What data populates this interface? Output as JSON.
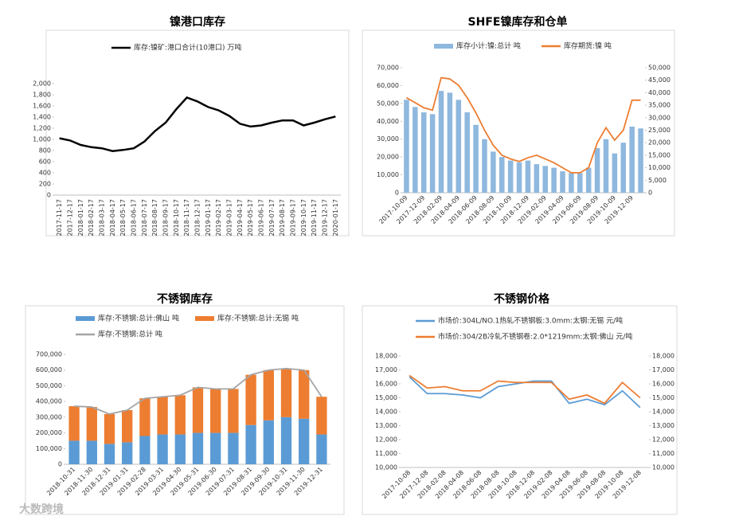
{
  "chart_data": [
    {
      "type": "line",
      "title": "镍港口库存",
      "categories": [
        "2017-11-17",
        "2017-12-17",
        "2018-01-17",
        "2018-02-17",
        "2018-03-17",
        "2018-04-17",
        "2018-05-17",
        "2018-06-17",
        "2018-07-17",
        "2018-08-17",
        "2018-09-17",
        "2018-10-17",
        "2018-11-17",
        "2018-12-17",
        "2019-01-17",
        "2019-02-17",
        "2019-03-17",
        "2019-04-17",
        "2019-05-17",
        "2019-06-17",
        "2019-07-17",
        "2019-08-17",
        "2019-09-17",
        "2019-10-17",
        "2019-11-17",
        "2019-12-17",
        "2020-01-17"
      ],
      "series": [
        {
          "name": "库存:镍矿:港口合计(10港口) 万吨",
          "color": "#000000",
          "type": "line",
          "values": [
            1020,
            980,
            900,
            860,
            840,
            790,
            810,
            840,
            960,
            1150,
            1300,
            1540,
            1750,
            1680,
            1580,
            1520,
            1420,
            1280,
            1230,
            1250,
            1300,
            1340,
            1340,
            1250,
            1300,
            1360,
            1410
          ]
        }
      ],
      "ylim": [
        0,
        2000
      ],
      "yticks": [
        0,
        200,
        400,
        600,
        800,
        {
          "value": 1000,
          "label": "1,000"
        },
        {
          "value": 1200,
          "label": "1,200"
        },
        {
          "value": 1400,
          "label": "1,400"
        },
        {
          "value": 1600,
          "label": "1,600"
        },
        {
          "value": 1800,
          "label": "1,800"
        },
        {
          "value": 2000,
          "label": "2,000"
        }
      ]
    },
    {
      "type": "bar_line",
      "title": "SHFE镍库存和仓单",
      "categories": [
        "2017-10-09",
        null,
        "2017-12-09",
        null,
        "2018-02-09",
        null,
        "2018-04-09",
        null,
        "2018-06-09",
        null,
        "2018-08-09",
        null,
        "2018-10-09",
        null,
        "2018-12-09",
        null,
        "2019-02-09",
        null,
        "2019-04-09",
        null,
        "2019-06-09",
        null,
        "2019-08-09",
        null,
        "2019-10-09",
        null,
        "2019-12-09",
        null
      ],
      "series": [
        {
          "name": "库存小计:镍:总计 吨",
          "color": "#8fb8de",
          "type": "bar",
          "values": [
            52000,
            48000,
            45000,
            44000,
            57000,
            56000,
            52000,
            45000,
            38000,
            30000,
            23000,
            20000,
            18000,
            17000,
            18000,
            16000,
            15000,
            14000,
            12000,
            11000,
            11000,
            14000,
            25000,
            30000,
            22000,
            28000,
            37000,
            36000
          ]
        },
        {
          "name": "库存期货:镍 吨",
          "color": "#ed7d31",
          "type": "line",
          "axis": "y2",
          "values": [
            38000,
            36000,
            34000,
            33000,
            46000,
            45500,
            43000,
            38000,
            32000,
            25000,
            19000,
            15000,
            13500,
            12500,
            14000,
            15000,
            13500,
            12000,
            10000,
            8000,
            8000,
            10000,
            20000,
            26000,
            21000,
            25000,
            37000,
            37000
          ]
        }
      ],
      "ylim": [
        0,
        70000
      ],
      "yticks": [
        0,
        {
          "value": 10000,
          "label": "10,000"
        },
        {
          "value": 20000,
          "label": "20,000"
        },
        {
          "value": 30000,
          "label": "30,000"
        },
        {
          "value": 40000,
          "label": "40,000"
        },
        {
          "value": 50000,
          "label": "50,000"
        },
        {
          "value": 60000,
          "label": "60,000"
        },
        {
          "value": 70000,
          "label": "70,000"
        }
      ],
      "y2lim": [
        0,
        50000
      ],
      "y2ticks": [
        0,
        {
          "value": 5000,
          "label": "5,000"
        },
        {
          "value": 10000,
          "label": "10,000"
        },
        {
          "value": 15000,
          "label": "15,000"
        },
        {
          "value": 20000,
          "label": "20,000"
        },
        {
          "value": 25000,
          "label": "25,000"
        },
        {
          "value": 30000,
          "label": "30,000"
        },
        {
          "value": 35000,
          "label": "35,000"
        },
        {
          "value": 40000,
          "label": "40,000"
        },
        {
          "value": 45000,
          "label": "45,000"
        },
        {
          "value": 50000,
          "label": "50,000"
        }
      ]
    },
    {
      "type": "stacked_bar_line",
      "title": "不锈钢库存",
      "categories": [
        "2018-10-31",
        "2018-11-30",
        "2018-12-31",
        "2019-01-31",
        "2019-02-28",
        "2019-03-31",
        "2019-04-30",
        "2019-05-31",
        "2019-06-30",
        "2019-07-31",
        "2019-08-31",
        "2019-09-30",
        "2019-10-31",
        "2019-11-30",
        "2019-12-31"
      ],
      "stacked": true,
      "series": [
        {
          "name": "库存:不锈钢:总计:佛山 吨",
          "color": "#5b9bd5",
          "type": "bar",
          "values": [
            150000,
            150000,
            130000,
            140000,
            180000,
            190000,
            190000,
            200000,
            200000,
            200000,
            250000,
            280000,
            300000,
            290000,
            190000
          ]
        },
        {
          "name": "库存:不锈钢:总计:无锡 吨",
          "color": "#ed7d31",
          "type": "bar",
          "values": [
            220000,
            215000,
            190000,
            205000,
            240000,
            240000,
            250000,
            290000,
            280000,
            280000,
            320000,
            320000,
            310000,
            310000,
            240000
          ]
        },
        {
          "name": "库存:不锈钢:总计 吨",
          "color": "#a5a5a5",
          "type": "line",
          "values": [
            370000,
            365000,
            320000,
            345000,
            420000,
            430000,
            440000,
            490000,
            480000,
            480000,
            570000,
            600000,
            610000,
            600000,
            430000
          ]
        }
      ],
      "ylim": [
        0,
        700000
      ],
      "yticks": [
        0,
        {
          "value": 100000,
          "label": "100,000"
        },
        {
          "value": 200000,
          "label": "200,000"
        },
        {
          "value": 300000,
          "label": "300,000"
        },
        {
          "value": 400000,
          "label": "400,000"
        },
        {
          "value": 500000,
          "label": "500,000"
        },
        {
          "value": 600000,
          "label": "600,000"
        },
        {
          "value": 700000,
          "label": "700,000"
        }
      ]
    },
    {
      "type": "line",
      "title": "不锈钢价格",
      "categories": [
        "2017-10-08",
        "2017-12-08",
        "2018-02-08",
        "2018-04-08",
        "2018-06-08",
        "2018-08-08",
        "2018-10-08",
        "2018-12-08",
        "2019-02-08",
        "2019-04-08",
        "2019-06-08",
        "2019-08-08",
        "2019-10-08",
        "2019-12-08"
      ],
      "series": [
        {
          "name": "市场价:304L/NO.1热轧不锈钢板:3.0mm:太钢:无锡 元/吨",
          "color": "#5b9bd5",
          "type": "line",
          "values": [
            16500,
            15300,
            15300,
            15200,
            15000,
            15800,
            16000,
            16200,
            16200,
            14600,
            14900,
            14500,
            15500,
            14300
          ]
        },
        {
          "name": "市场价:304/2B冷轧不锈钢卷:2.0*1219mm:太钢:佛山 元/吨",
          "color": "#ed7d31",
          "type": "line",
          "axis": "y2",
          "values": [
            16600,
            15700,
            15800,
            15500,
            15500,
            16200,
            16100,
            16100,
            16100,
            14900,
            15200,
            14600,
            16100,
            15000
          ]
        }
      ],
      "ylim": [
        10000,
        18000
      ],
      "yticks": [
        {
          "value": 10000,
          "label": "10,000"
        },
        {
          "value": 11000,
          "label": "11,000"
        },
        {
          "value": 12000,
          "label": "12,000"
        },
        {
          "value": 13000,
          "label": "13,000"
        },
        {
          "value": 14000,
          "label": "14,000"
        },
        {
          "value": 15000,
          "label": "15,000"
        },
        {
          "value": 16000,
          "label": "16,000"
        },
        {
          "value": 17000,
          "label": "17,000"
        },
        {
          "value": 18000,
          "label": "18,000"
        }
      ],
      "y2lim": [
        10000,
        18000
      ],
      "y2ticks": [
        {
          "value": 10000,
          "label": "10,000"
        },
        {
          "value": 11000,
          "label": "11,000"
        },
        {
          "value": 12000,
          "label": "12,000"
        },
        {
          "value": 13000,
          "label": "13,000"
        },
        {
          "value": 14000,
          "label": "14,000"
        },
        {
          "value": 15000,
          "label": "15,000"
        },
        {
          "value": 16000,
          "label": "16,000"
        },
        {
          "value": 17000,
          "label": "17,000"
        },
        {
          "value": 18000,
          "label": "18,000"
        }
      ]
    }
  ],
  "watermark": "大数跨境"
}
